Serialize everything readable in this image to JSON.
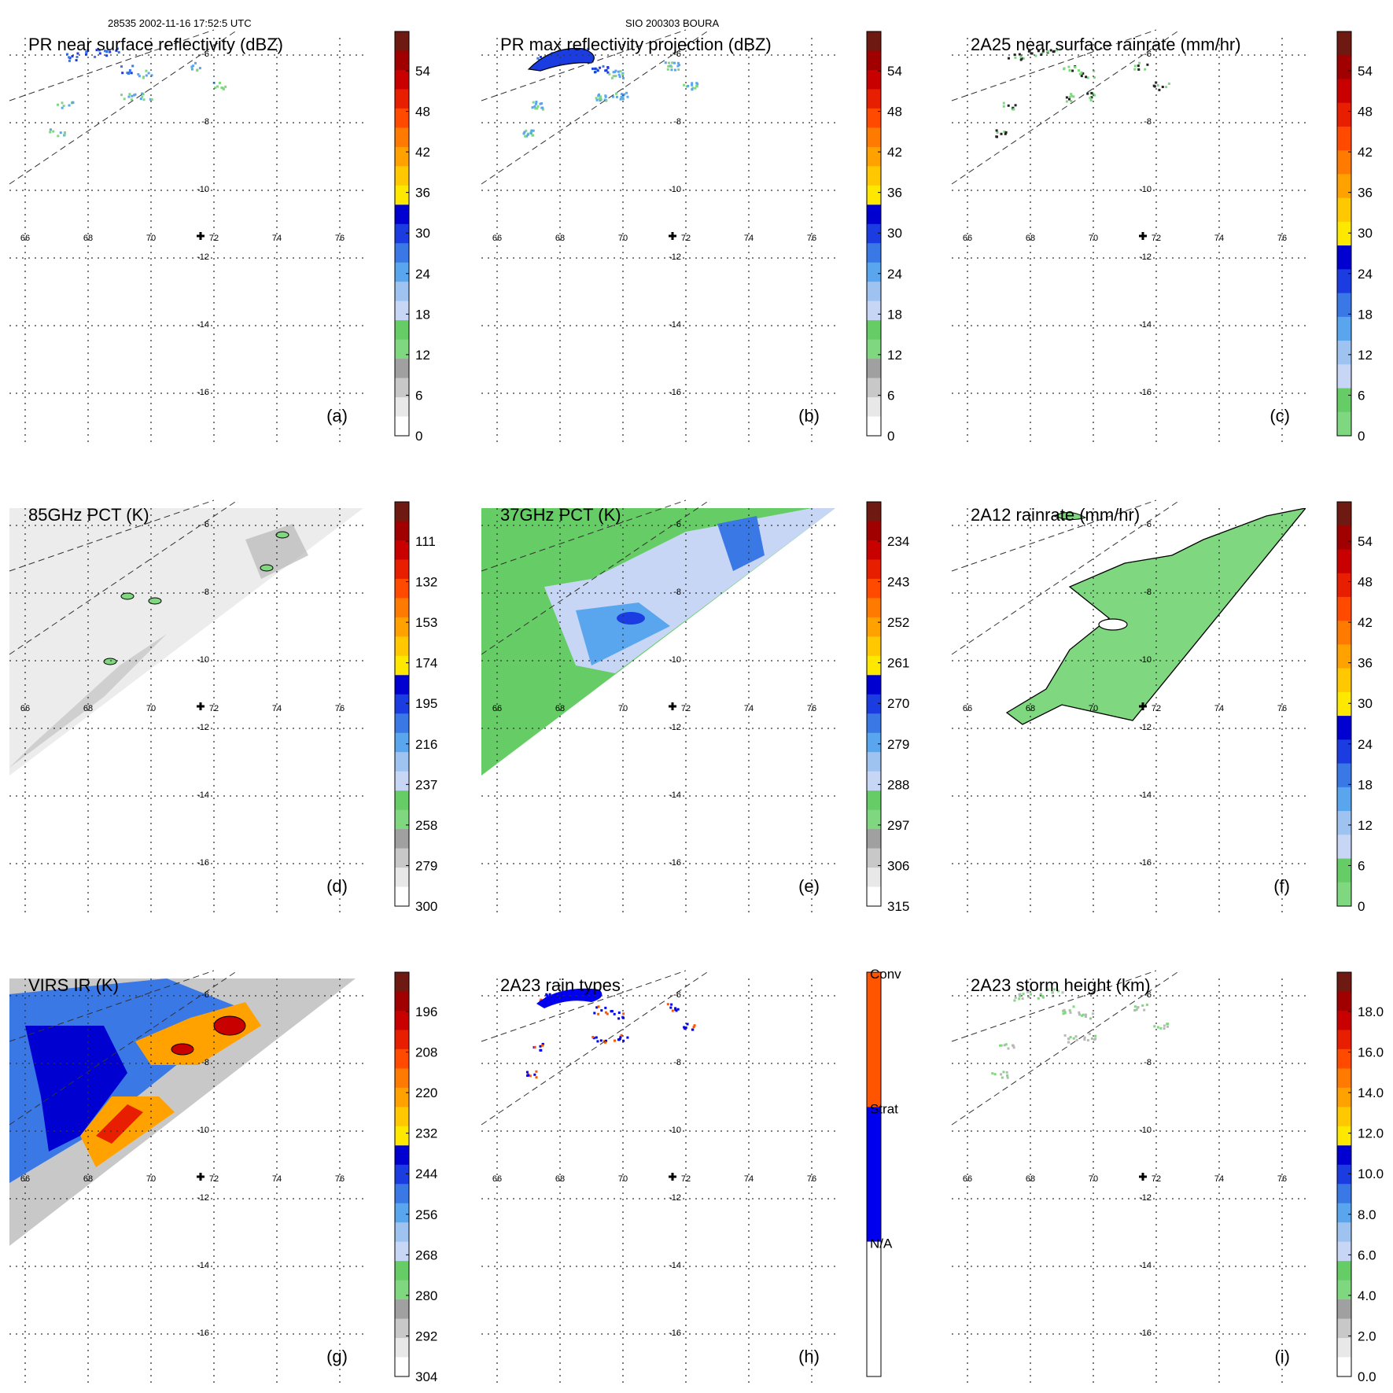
{
  "header": {
    "orbit_time": "28535 2002-11-16 17:52:5 UTC",
    "storm_id": "SIO 200303 BOURA"
  },
  "axis_labels": {
    "longitudes": [
      "66",
      "68",
      "70",
      "72",
      "74",
      "76"
    ],
    "latitudes": [
      "-6",
      "-8",
      "-10",
      "-12",
      "-14",
      "-16"
    ]
  },
  "panels": [
    {
      "id": "a",
      "title": "PR near surface reflectivity (dBZ)",
      "letter": "(a)",
      "colorbar": [
        "54",
        "48",
        "42",
        "36",
        "30",
        "24",
        "18",
        "12",
        "6",
        "0"
      ],
      "field": "pr_near_surface",
      "palette": "dbz"
    },
    {
      "id": "b",
      "title": "PR max reflectivity projection (dBZ)",
      "letter": "(b)",
      "colorbar": [
        "54",
        "48",
        "42",
        "36",
        "30",
        "24",
        "18",
        "12",
        "6",
        "0"
      ],
      "field": "pr_max",
      "palette": "dbz"
    },
    {
      "id": "c",
      "title": "2A25 near surface rainrate (mm/hr)",
      "letter": "(c)",
      "colorbar": [
        "54",
        "48",
        "42",
        "36",
        "30",
        "24",
        "18",
        "12",
        "6",
        "0"
      ],
      "field": "pr_rainrate",
      "palette": "rain"
    },
    {
      "id": "d",
      "title": "85GHz PCT (K)",
      "letter": "(d)",
      "colorbar": [
        "111",
        "132",
        "153",
        "174",
        "195",
        "216",
        "237",
        "258",
        "279",
        "300"
      ],
      "field": "pct85",
      "palette": "dbz"
    },
    {
      "id": "e",
      "title": "37GHz PCT (K)",
      "letter": "(e)",
      "colorbar": [
        "234",
        "243",
        "252",
        "261",
        "270",
        "279",
        "288",
        "297",
        "306",
        "315"
      ],
      "field": "pct37",
      "palette": "dbz"
    },
    {
      "id": "f",
      "title": "2A12 rainrate (mm/hr)",
      "letter": "(f)",
      "colorbar": [
        "54",
        "48",
        "42",
        "36",
        "30",
        "24",
        "18",
        "12",
        "6",
        "0"
      ],
      "field": "tmi_rain",
      "palette": "rain"
    },
    {
      "id": "g",
      "title": "VIRS IR (K)",
      "letter": "(g)",
      "colorbar": [
        "196",
        "208",
        "220",
        "232",
        "244",
        "256",
        "268",
        "280",
        "292",
        "304"
      ],
      "field": "virs",
      "palette": "dbz"
    },
    {
      "id": "h",
      "title": "2A23 rain types",
      "letter": "(h)",
      "colorbar": [
        "Conv",
        "Strat",
        "N/A"
      ],
      "field": "rain_type",
      "palette": "type"
    },
    {
      "id": "i",
      "title": "2A23 storm height (km)",
      "letter": "(i)",
      "colorbar": [
        "18.0",
        "16.0",
        "14.0",
        "12.0",
        "10.0",
        "8.0",
        "6.0",
        "4.0",
        "2.0",
        "0.0"
      ],
      "field": "storm_height",
      "palette": "dbz"
    }
  ],
  "colors": {
    "dbz": [
      "#ffffff",
      "#e8e8e8",
      "#c8c8c8",
      "#a0a0a0",
      "#7fd87f",
      "#66cc66",
      "#c8d6f5",
      "#9ec3f0",
      "#5aa6ee",
      "#3a78e6",
      "#1a3ce0",
      "#0000d0",
      "#ffe800",
      "#ffc800",
      "#ffa200",
      "#ff7a00",
      "#ff4a00",
      "#e81e00",
      "#c80000",
      "#a00000",
      "#6e1a12"
    ],
    "rain": [
      "#7fd87f",
      "#66cc66",
      "#c8d6f5",
      "#9ec3f0",
      "#5aa6ee",
      "#3a78e6",
      "#1a3ce0",
      "#0000d0",
      "#ffe800",
      "#ffc800",
      "#ffa200",
      "#ff7a00",
      "#ff4a00",
      "#e81e00",
      "#c80000",
      "#a00000",
      "#6e1a12"
    ],
    "type": [
      "#ffffff",
      "#0000ee",
      "#ff5500"
    ]
  }
}
